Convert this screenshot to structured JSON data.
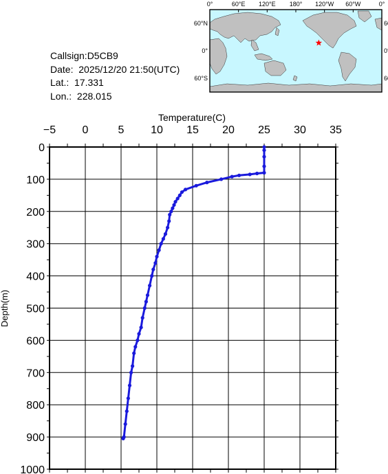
{
  "station": {
    "callsign_line": "Callsign:D5CB9",
    "date_line": "Date:  2025/12/20 21:50(UTC)",
    "lat_line": "Lat.:  17.331",
    "lon_line": "Lon.:  228.015"
  },
  "map": {
    "top_labels": [
      "0°",
      "60°E",
      "120°E",
      "180°",
      "120°W",
      "60°W",
      "0°"
    ],
    "left_labels": [
      "60°N",
      "0°",
      "60°S"
    ],
    "right_labels": [
      "60°N",
      "0°",
      "60°S"
    ],
    "marker": {
      "lon": 228.015,
      "lat": 17.331
    },
    "marker_color": "#ff0000",
    "ocean_color": "#c8f7ff",
    "land_color": "#c0c0c0"
  },
  "chart_data": {
    "type": "line",
    "title": "",
    "xlabel": "Temperature(C)",
    "ylabel": "Depth(m)",
    "xlim": [
      -5,
      35
    ],
    "ylim": [
      0,
      1000
    ],
    "y_inverted": true,
    "x_ticks": [
      -5,
      0,
      5,
      10,
      15,
      20,
      25,
      30,
      35
    ],
    "y_ticks": [
      0,
      100,
      200,
      300,
      400,
      500,
      600,
      700,
      800,
      900,
      1000
    ],
    "grid": true,
    "color": "#1a1adc",
    "series": [
      {
        "points": [
          [
            25.0,
            0
          ],
          [
            25.0,
            10
          ],
          [
            25.0,
            30
          ],
          [
            25.0,
            60
          ],
          [
            25.0,
            80
          ],
          [
            24.0,
            82
          ],
          [
            23.0,
            85
          ],
          [
            21.5,
            88
          ],
          [
            20.5,
            92
          ],
          [
            19.0,
            100
          ],
          [
            17.0,
            110
          ],
          [
            15.5,
            120
          ],
          [
            14.0,
            132
          ],
          [
            13.5,
            140
          ],
          [
            13.2,
            150
          ],
          [
            12.9,
            160
          ],
          [
            12.6,
            170
          ],
          [
            12.4,
            180
          ],
          [
            12.2,
            190
          ],
          [
            12.0,
            200
          ],
          [
            11.8,
            210
          ],
          [
            11.7,
            230
          ],
          [
            11.5,
            250
          ],
          [
            11.2,
            270
          ],
          [
            10.9,
            285
          ],
          [
            10.6,
            300
          ],
          [
            10.3,
            320
          ],
          [
            10.0,
            340
          ],
          [
            9.8,
            360
          ],
          [
            9.5,
            380
          ],
          [
            9.3,
            400
          ],
          [
            9.0,
            430
          ],
          [
            8.7,
            460
          ],
          [
            8.5,
            480
          ],
          [
            8.3,
            500
          ],
          [
            8.0,
            530
          ],
          [
            7.8,
            560
          ],
          [
            7.5,
            580
          ],
          [
            7.3,
            600
          ],
          [
            7.0,
            620
          ],
          [
            6.8,
            640
          ],
          [
            6.6,
            680
          ],
          [
            6.4,
            700
          ],
          [
            6.2,
            740
          ],
          [
            6.0,
            780
          ],
          [
            5.8,
            820
          ],
          [
            5.6,
            860
          ],
          [
            5.4,
            900
          ],
          [
            5.3,
            905
          ]
        ]
      }
    ]
  }
}
